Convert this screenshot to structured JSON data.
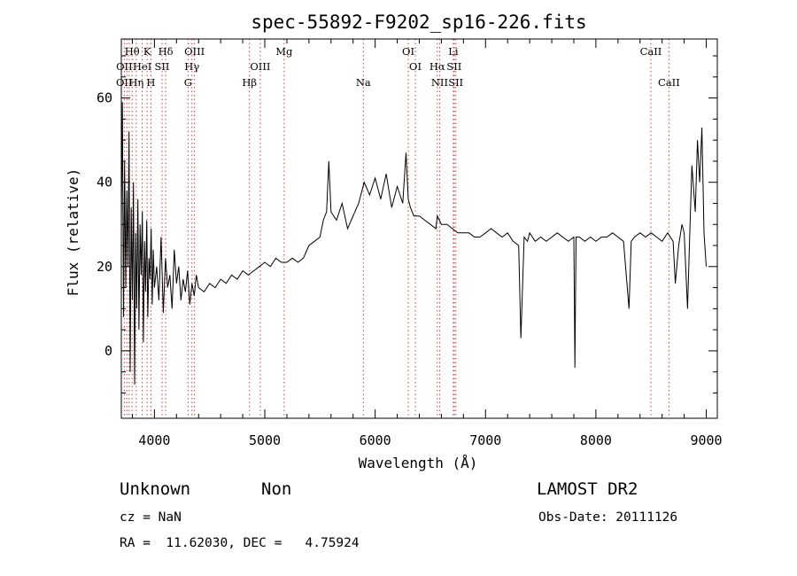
{
  "chart_data": {
    "type": "line",
    "title": "spec-55892-F9202_sp16-226.fits",
    "xlabel": "Wavelength (Å)",
    "ylabel": "Flux (relative)",
    "xlim": [
      3700,
      9100
    ],
    "ylim": [
      -16,
      74
    ],
    "xticks": [
      "4000",
      "5000",
      "6000",
      "7000",
      "8000",
      "9000"
    ],
    "yticks": [
      "0",
      "20",
      "40",
      "60"
    ],
    "series": [
      {
        "color": "#000000",
        "x": [
          3700,
          3710,
          3720,
          3730,
          3740,
          3750,
          3760,
          3770,
          3780,
          3790,
          3800,
          3810,
          3820,
          3830,
          3840,
          3850,
          3860,
          3870,
          3880,
          3890,
          3900,
          3910,
          3920,
          3930,
          3940,
          3950,
          3960,
          3970,
          3980,
          3990,
          4000,
          4020,
          4040,
          4060,
          4080,
          4100,
          4120,
          4140,
          4160,
          4180,
          4200,
          4220,
          4240,
          4260,
          4280,
          4300,
          4320,
          4340,
          4360,
          4380,
          4400,
          4450,
          4500,
          4550,
          4600,
          4650,
          4700,
          4750,
          4800,
          4850,
          4900,
          4950,
          5000,
          5050,
          5100,
          5150,
          5200,
          5250,
          5300,
          5350,
          5400,
          5450,
          5500,
          5530,
          5560,
          5580,
          5600,
          5650,
          5700,
          5750,
          5800,
          5850,
          5900,
          5950,
          6000,
          6050,
          6100,
          6150,
          6200,
          6250,
          6280,
          6300,
          6320,
          6350,
          6400,
          6450,
          6500,
          6550,
          6563,
          6600,
          6650,
          6700,
          6750,
          6800,
          6850,
          6900,
          6950,
          7000,
          7050,
          7100,
          7150,
          7200,
          7250,
          7300,
          7320,
          7350,
          7380,
          7400,
          7450,
          7500,
          7550,
          7600,
          7650,
          7700,
          7750,
          7800,
          7810,
          7820,
          7850,
          7900,
          7950,
          8000,
          8050,
          8100,
          8150,
          8200,
          8250,
          8300,
          8320,
          8350,
          8400,
          8450,
          8500,
          8550,
          8600,
          8650,
          8700,
          8720,
          8750,
          8780,
          8800,
          8830,
          8850,
          8870,
          8900,
          8920,
          8940,
          8960,
          8980,
          9000
        ],
        "y": [
          30,
          59,
          8,
          45,
          15,
          38,
          20,
          52,
          -5,
          34,
          12,
          40,
          -8,
          28,
          10,
          36,
          5,
          30,
          18,
          33,
          2,
          26,
          14,
          31,
          8,
          22,
          17,
          29,
          11,
          24,
          15,
          20,
          12,
          27,
          9,
          22,
          15,
          18,
          10,
          24,
          16,
          20,
          12,
          17,
          14,
          19,
          11,
          16,
          13,
          18,
          15,
          14,
          16,
          15,
          17,
          16,
          18,
          17,
          19,
          18,
          19,
          20,
          21,
          20,
          22,
          21,
          21,
          22,
          21,
          22,
          25,
          26,
          27,
          31,
          33,
          45,
          33,
          31,
          35,
          29,
          32,
          35,
          40,
          37,
          41,
          36,
          42,
          34,
          39,
          35,
          47,
          36,
          34,
          32,
          32,
          31,
          30,
          29,
          32,
          30,
          30,
          29,
          28,
          28,
          28,
          27,
          27,
          28,
          29,
          28,
          27,
          28,
          26,
          25,
          3,
          27,
          26,
          28,
          26,
          27,
          26,
          27,
          28,
          27,
          26,
          27,
          -4,
          27,
          27,
          26,
          27,
          26,
          27,
          27,
          28,
          27,
          26,
          10,
          26,
          27,
          28,
          27,
          28,
          27,
          26,
          28,
          26,
          16,
          25,
          30,
          28,
          10,
          27,
          44,
          33,
          50,
          40,
          53,
          28,
          20
        ]
      }
    ],
    "spectral_lines": [
      {
        "label": "Hθ",
        "x": 3798,
        "row": 1
      },
      {
        "label": "K",
        "x": 3934,
        "row": 1
      },
      {
        "label": "Hδ",
        "x": 4102,
        "row": 1
      },
      {
        "label": "OIII",
        "x": 4363,
        "row": 1
      },
      {
        "label": "Mg",
        "x": 5175,
        "row": 1
      },
      {
        "label": "OI",
        "x": 6300,
        "row": 1
      },
      {
        "label": "Li",
        "x": 6708,
        "row": 1
      },
      {
        "label": "CaII",
        "x": 8498,
        "row": 1
      },
      {
        "label": "OII",
        "x": 3727,
        "row": 2
      },
      {
        "label": "HeI",
        "x": 3889,
        "row": 2
      },
      {
        "label": "SII",
        "x": 4069,
        "row": 2
      },
      {
        "label": "Hγ",
        "x": 4340,
        "row": 2
      },
      {
        "label": "OIII",
        "x": 4959,
        "row": 2
      },
      {
        "label": "OI",
        "x": 6364,
        "row": 2
      },
      {
        "label": "Hα",
        "x": 6563,
        "row": 2
      },
      {
        "label": "SII",
        "x": 6716,
        "row": 2
      },
      {
        "label": "OII",
        "x": 3726,
        "row": 3
      },
      {
        "label": "Hη",
        "x": 3835,
        "row": 3
      },
      {
        "label": "H",
        "x": 3968,
        "row": 3
      },
      {
        "label": "G",
        "x": 4305,
        "row": 3
      },
      {
        "label": "Hβ",
        "x": 4861,
        "row": 3
      },
      {
        "label": "Na",
        "x": 5893,
        "row": 3
      },
      {
        "label": "NII",
        "x": 6584,
        "row": 3
      },
      {
        "label": "SII",
        "x": 6731,
        "row": 3
      },
      {
        "label": "CaII",
        "x": 8662,
        "row": 3
      }
    ],
    "dotted_lines_x": [
      3727,
      3750,
      3771,
      3798,
      3835,
      3889,
      3934,
      3968,
      4069,
      4102,
      4305,
      4340,
      4363,
      4861,
      4959,
      5175,
      5893,
      6300,
      6364,
      6563,
      6584,
      6708,
      6716,
      6731,
      8498,
      8662
    ],
    "line_color": "#d04040"
  },
  "info": {
    "class": "Unknown",
    "subclass": "Non",
    "survey": "LAMOST DR2",
    "cz": "cz = NaN",
    "obs_date": "Obs-Date: 20111126",
    "coords": "RA =  11.62030, DEC =   4.75924"
  }
}
